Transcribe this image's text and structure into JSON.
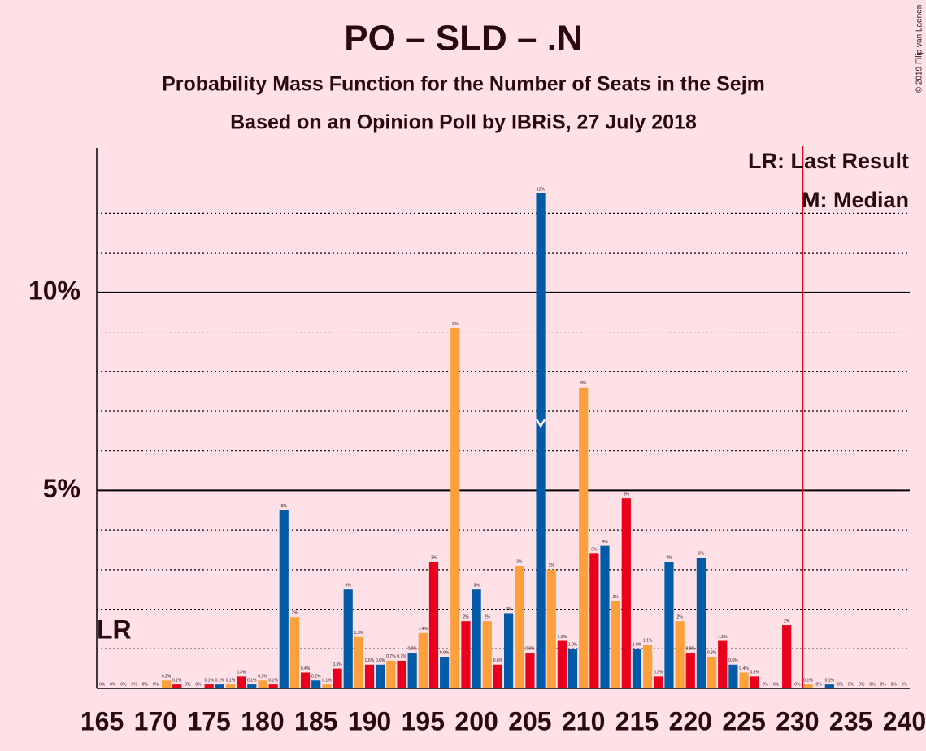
{
  "chart_data": {
    "type": "bar",
    "title": "PO – SLD – .N",
    "subtitle": "Probability Mass Function for the Number of Seats in the Sejm",
    "subtitle2": "Based on an Opinion Poll by IBRiS, 27 July 2018",
    "copyright": "© 2019 Filip van Laenen",
    "legend": [
      "LR: Last Result",
      "M: Median"
    ],
    "lr_label": "LR",
    "x": [
      165,
      166,
      167,
      168,
      169,
      170,
      171,
      172,
      173,
      174,
      175,
      176,
      177,
      178,
      179,
      180,
      181,
      182,
      183,
      184,
      185,
      186,
      187,
      188,
      189,
      190,
      191,
      192,
      193,
      194,
      195,
      196,
      197,
      198,
      199,
      200,
      201,
      202,
      203,
      204,
      205,
      206,
      207,
      208,
      209,
      210,
      211,
      212,
      213,
      214,
      215,
      216,
      217,
      218,
      219,
      220,
      221,
      222,
      223,
      224,
      225,
      226,
      227,
      228,
      229,
      230,
      231,
      232,
      233,
      234,
      235,
      236,
      237,
      238,
      239,
      240
    ],
    "values": [
      0,
      0,
      0,
      0,
      0,
      0,
      0.2,
      0.1,
      0,
      0,
      0.1,
      0.1,
      0.1,
      0.3,
      0.1,
      0.2,
      0.1,
      4.5,
      1.8,
      0.4,
      0.2,
      0.1,
      0.5,
      2.5,
      1.3,
      0.6,
      0.6,
      0.7,
      0.7,
      0.9,
      1.4,
      3.2,
      0.8,
      9.1,
      1.7,
      2.5,
      1.7,
      0.6,
      1.9,
      3.1,
      0.9,
      12.5,
      3.0,
      1.2,
      1.0,
      7.6,
      3.4,
      3.6,
      2.2,
      4.8,
      1.0,
      1.1,
      0.3,
      3.2,
      1.7,
      0.9,
      3.3,
      0.8,
      1.2,
      0.6,
      0.4,
      0.3,
      0,
      0,
      1.6,
      0,
      0.1,
      0,
      0.1,
      0,
      0,
      0,
      0,
      0,
      0,
      0
    ],
    "value_labels": [
      "0%",
      "0%",
      "0%",
      "0%",
      "0%",
      "0%",
      "0.2%",
      "0.1%",
      "0%",
      "0%",
      "0.1%",
      "0.1%",
      "0.1%",
      "0.3%",
      "0.1%",
      "0.2%",
      "0.1%",
      "5%",
      "2%",
      "0.4%",
      "0.2%",
      "0.1%",
      "0.5%",
      "3%",
      "1.3%",
      "0.6%",
      "0.6%",
      "0.7%",
      "0.7%",
      "0.9%",
      "1.4%",
      "3%",
      "0.8%",
      "9%",
      "2%",
      "3%",
      "2%",
      "0.6%",
      "2%",
      "3%",
      "0.9%",
      "13%",
      "3%",
      "1.2%",
      "1.0%",
      "8%",
      "3%",
      "4%",
      "2%",
      "5%",
      "1.0%",
      "1.1%",
      "0.3%",
      "3%",
      "2%",
      "0.9%",
      "3%",
      "0.8%",
      "1.2%",
      "0.6%",
      "0.4%",
      "0.3%",
      "0%",
      "0%",
      "2%",
      "0%",
      "0.1%",
      "0%",
      "0.1%",
      "0%",
      "0%",
      "0%",
      "0%",
      "0%",
      "0%",
      "0%"
    ],
    "colors": [
      "#005ba8",
      "#ffa03c",
      "#e8001c"
    ],
    "color_start": 182,
    "last_result": 231,
    "last_result_color": "#e8001c",
    "median": 206,
    "xlim": [
      164.5,
      240.5
    ],
    "xticks": [
      165,
      170,
      175,
      180,
      185,
      190,
      195,
      200,
      205,
      210,
      215,
      220,
      225,
      230,
      235,
      240
    ],
    "ylim": [
      0,
      13.65
    ],
    "yticks": [
      {
        "value": 5,
        "label": "5%"
      },
      {
        "value": 10,
        "label": "10%"
      }
    ],
    "minor_gridlines": [
      1,
      2,
      3,
      4,
      6,
      7,
      8,
      9,
      11,
      12
    ]
  }
}
